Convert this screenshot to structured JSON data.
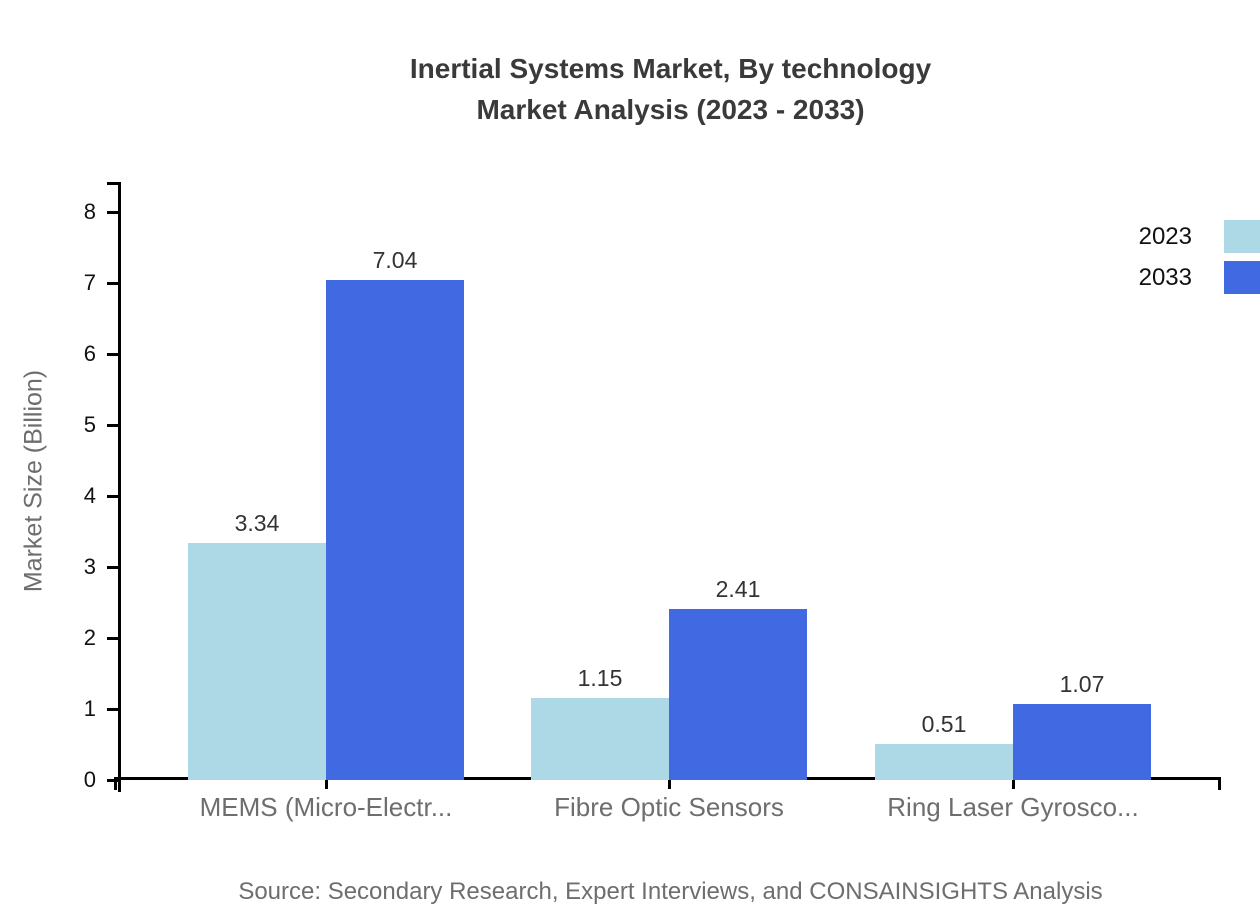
{
  "title": {
    "line1": "Inertial Systems Market, By technology",
    "line2": "Market Analysis (2023 - 2033)"
  },
  "source_note": "Source: Secondary Research, Expert Interviews, and CONSAINSIGHTS Analysis",
  "colors": {
    "series_2023": "#ADD8E6",
    "series_2033": "#4169E1",
    "axis": "#000000",
    "title_text": "#3a3a3a",
    "muted_text": "#6e6e6e",
    "tick_text": "#111111",
    "value_text": "#333333",
    "background": "#ffffff"
  },
  "chart_data": {
    "type": "bar",
    "title": "Inertial Systems Market, By technology",
    "subtitle": "Market Analysis (2023 - 2033)",
    "categories": [
      "MEMS (Micro-Electr...",
      "Fibre Optic Sensors",
      "Ring Laser Gyrosco..."
    ],
    "series": [
      {
        "name": "2023",
        "color": "#ADD8E6",
        "values": [
          3.34,
          1.15,
          0.51
        ]
      },
      {
        "name": "2033",
        "color": "#4169E1",
        "values": [
          7.04,
          2.41,
          1.07
        ]
      }
    ],
    "xlabel": "",
    "ylabel": "Market Size (Billion)",
    "ylim": [
      0,
      8.4
    ],
    "yticks": [
      0,
      1,
      2,
      3,
      4,
      5,
      6,
      7,
      8
    ],
    "grid": false,
    "value_labels_shown": true,
    "value_label_format": "2dp",
    "legend": {
      "position": "top-right",
      "entries": [
        "2023",
        "2033"
      ]
    }
  }
}
